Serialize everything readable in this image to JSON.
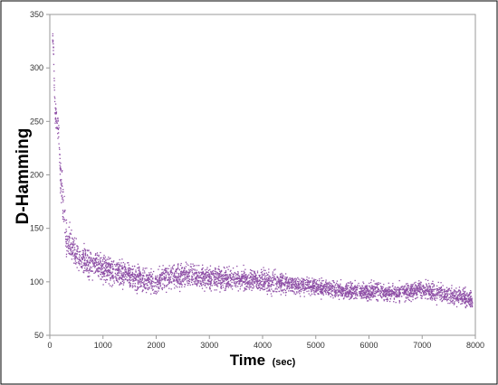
{
  "chart_data": {
    "type": "scatter",
    "title": "",
    "xlabel": "Time",
    "xlabel_unit": "(sec)",
    "ylabel": "D-Hamming",
    "xlim": [
      0,
      8000
    ],
    "ylim": [
      50,
      350
    ],
    "xticks": [
      "0",
      "1000",
      "2000",
      "3000",
      "4000",
      "5000",
      "6000",
      "7000",
      "8000"
    ],
    "yticks": [
      "50",
      "100",
      "150",
      "200",
      "250",
      "300",
      "350"
    ],
    "grid": false,
    "legend": "none",
    "marker_color": "#8e4fa6",
    "point_count_estimate": 4000,
    "series": [
      {
        "trend": {
          "x": [
            0,
            60,
            100,
            150,
            200,
            250,
            300,
            350,
            400,
            500,
            600,
            800,
            1000,
            1200,
            1500,
            1800,
            2000,
            2200,
            2500,
            3000,
            3500,
            4000,
            4500,
            5000,
            5500,
            6000,
            6500,
            7000,
            7500,
            7900,
            7950
          ],
          "y": [
            330,
            328,
            258,
            250,
            205,
            170,
            140,
            137,
            135,
            125,
            120,
            117,
            113,
            110,
            105,
            101,
            100,
            105,
            105,
            104,
            102,
            101,
            98,
            95,
            92,
            91,
            90,
            92,
            87,
            85,
            78
          ],
          "spread": [
            6,
            6,
            8,
            15,
            20,
            20,
            15,
            14,
            13,
            12,
            12,
            11,
            11,
            10,
            9,
            9,
            9,
            10,
            10,
            9,
            9,
            9,
            8,
            7,
            7,
            7,
            7,
            7,
            7,
            7,
            7
          ]
        }
      }
    ]
  }
}
